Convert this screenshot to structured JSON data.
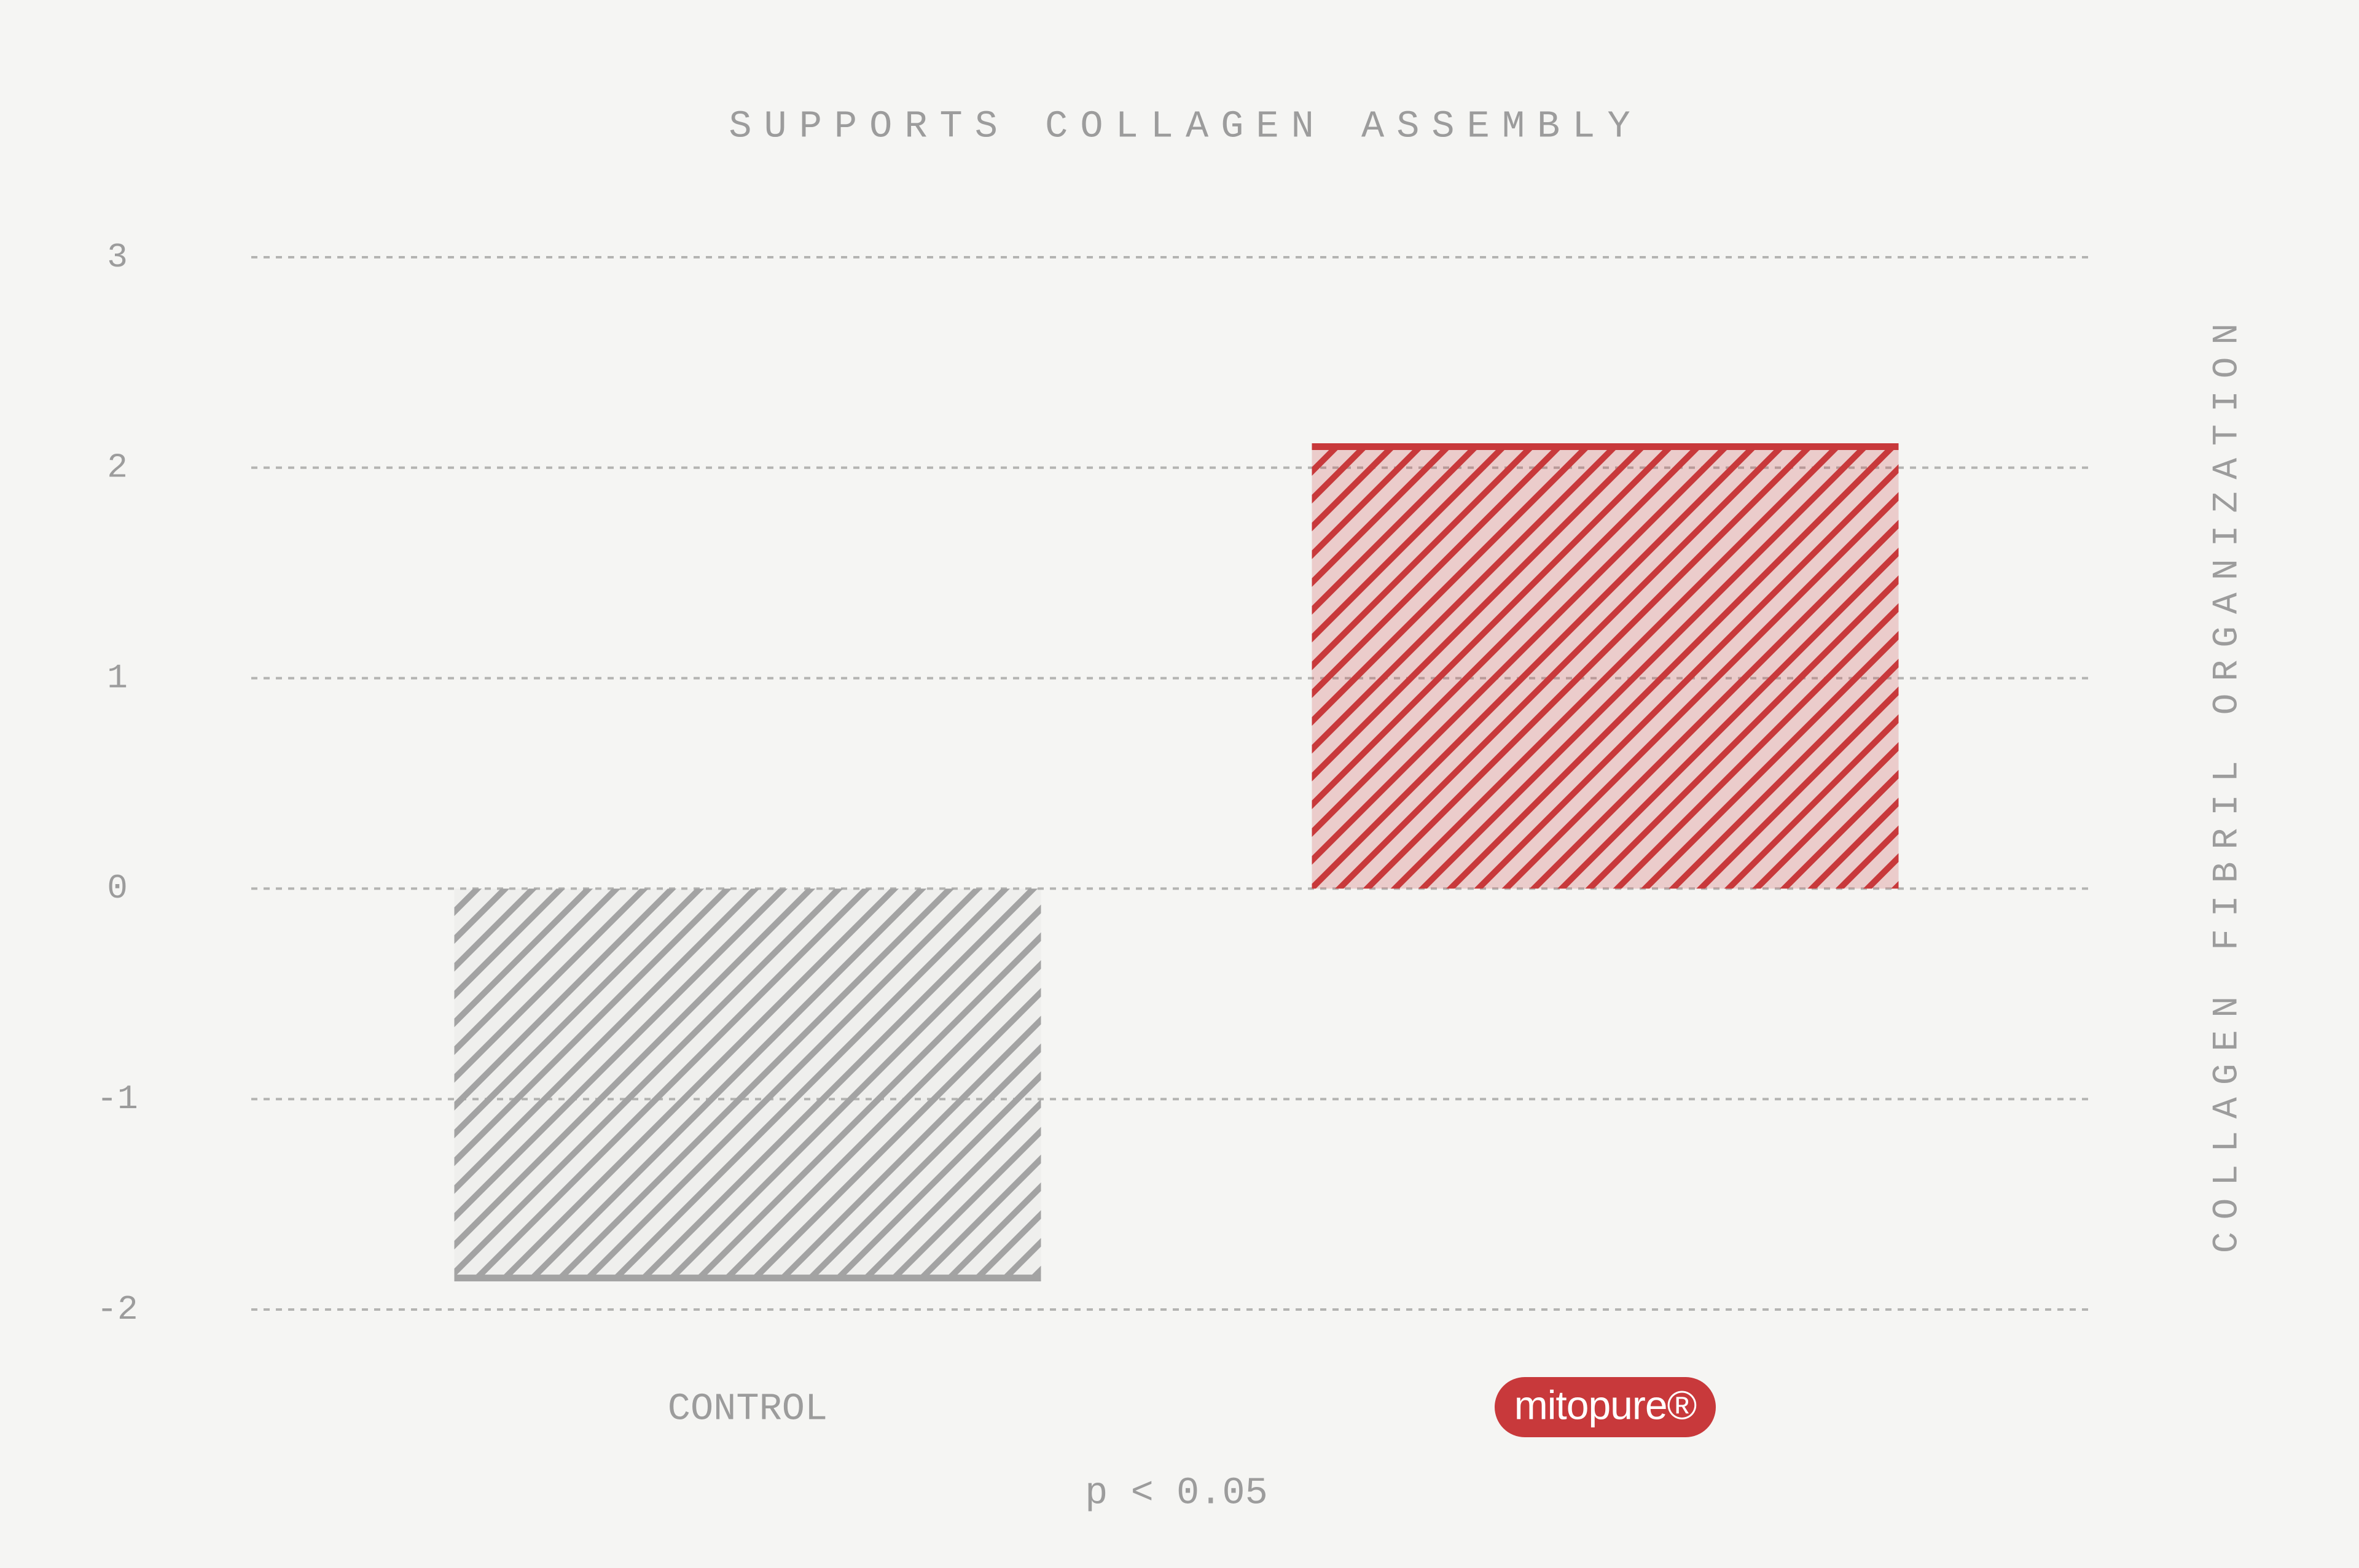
{
  "chart_data": {
    "type": "bar",
    "title": "SUPPORTS COLLAGEN ASSEMBLY",
    "y_label": "COLLAGEN FIBRIL ORGANIZATION",
    "annotation": "p < 0.05",
    "categories": [
      "CONTROL",
      "mitopure®"
    ],
    "values": [
      -1.85,
      2.1
    ],
    "colors": [
      "#a3a3a3",
      "#c8393b"
    ],
    "ylim": [
      -2,
      3
    ],
    "yticks": [
      -2,
      -1,
      0,
      1,
      2,
      3
    ],
    "grid": true
  }
}
